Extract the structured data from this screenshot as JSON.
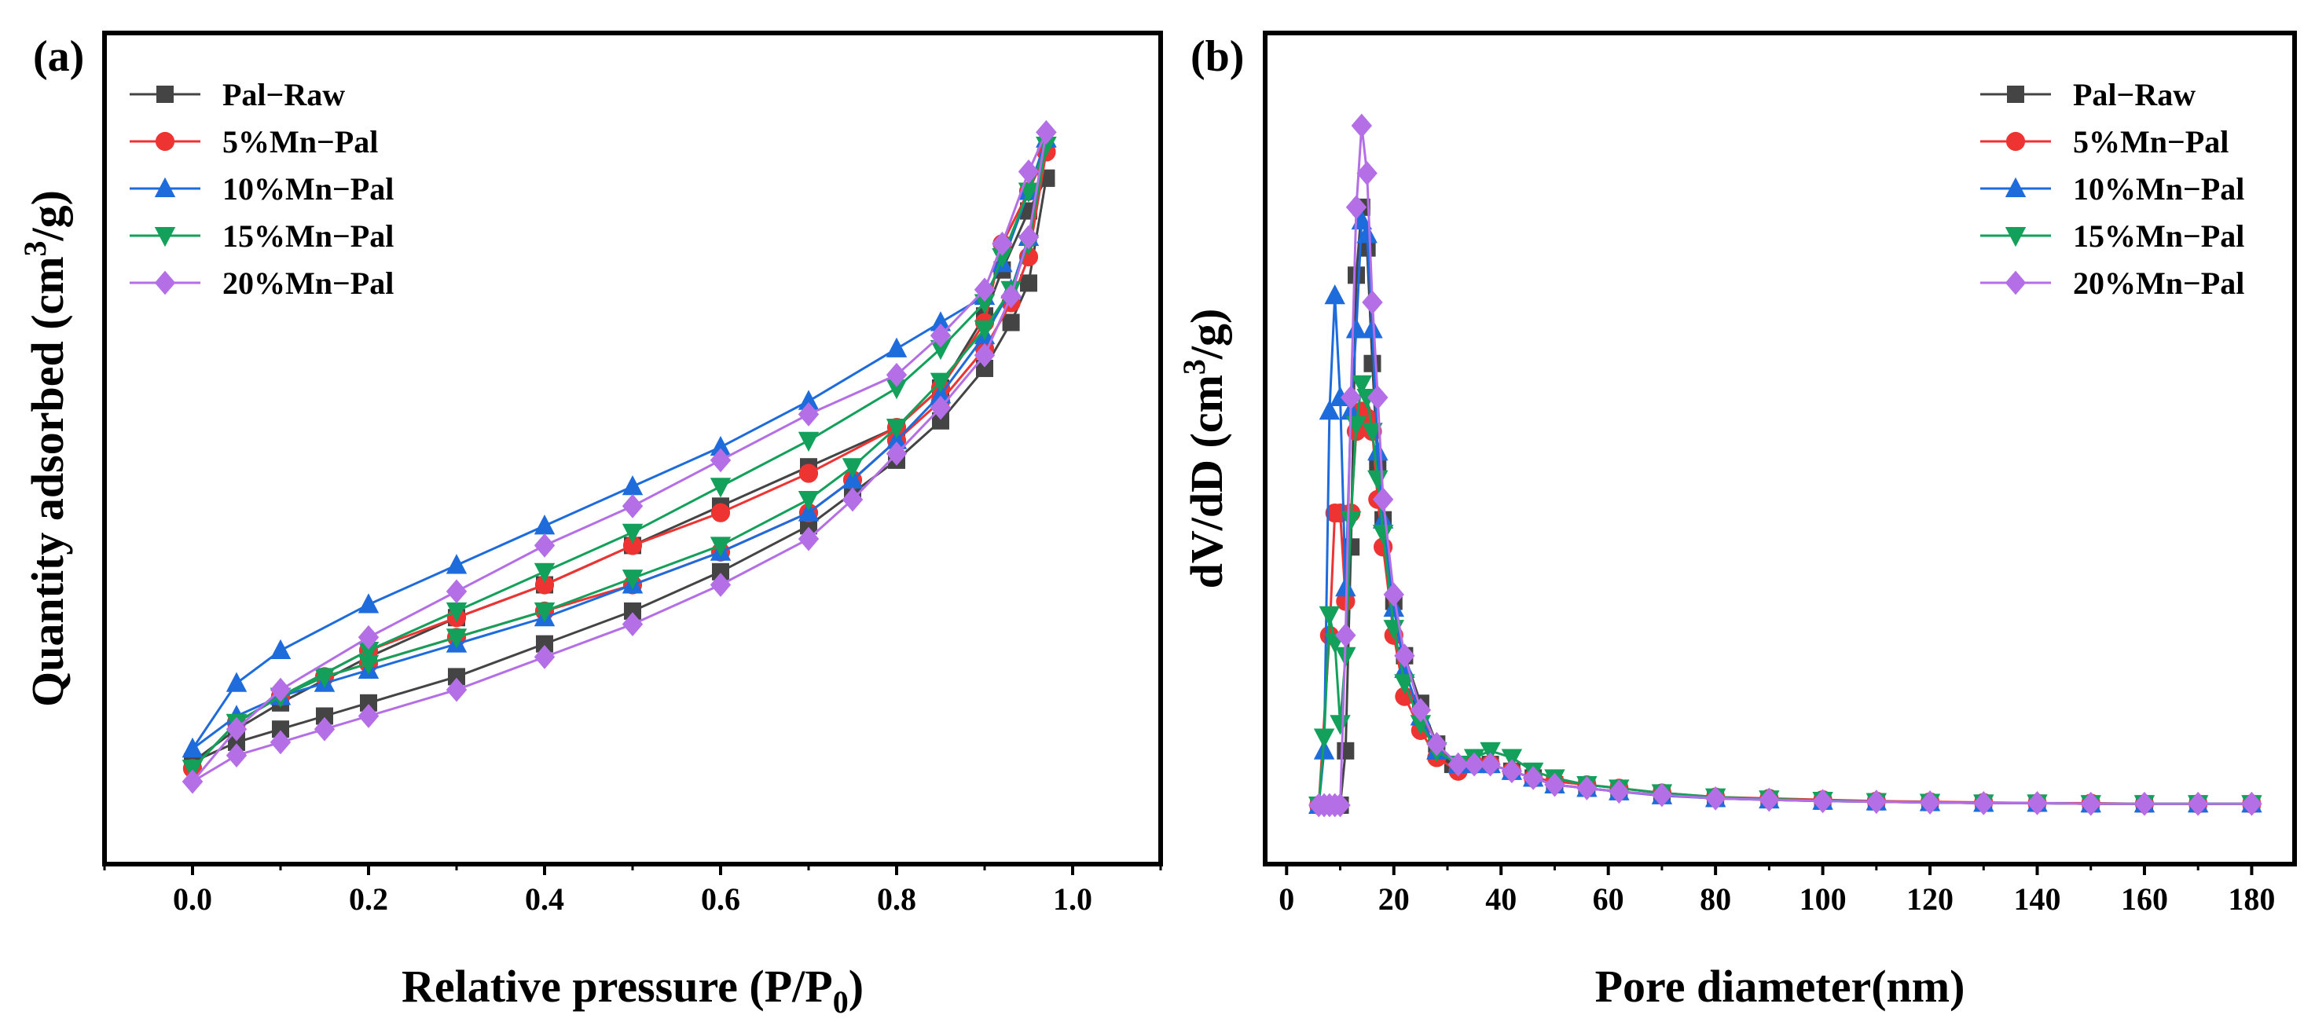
{
  "chart_data": [
    {
      "panel_label": "(a)",
      "type": "scatter",
      "xlabel": "Relative pressure (P/P",
      "xlabel_sub": "0",
      "xlabel_end": ")",
      "ylabel": "Quantity adsorbed (cm",
      "ylabel_sup": "3",
      "ylabel_end": "/g)",
      "xlim": [
        -0.1,
        1.1
      ],
      "ylim": [
        0,
        1
      ],
      "y_ticks_labeled": false,
      "xticks": [
        "0.0",
        "0.2",
        "0.4",
        "0.6",
        "0.8",
        "1.0"
      ],
      "xtick_values": [
        0,
        0.2,
        0.4,
        0.6,
        0.8,
        1.0
      ],
      "grid": false,
      "legend_position": "top-left",
      "series": [
        {
          "name": "Pal−Raw",
          "color": "#444444",
          "marker": "square",
          "adsorption": {
            "x": [
              0.0,
              0.05,
              0.1,
              0.15,
              0.2,
              0.3,
              0.4,
              0.5,
              0.6,
              0.7,
              0.75,
              0.8,
              0.85,
              0.9,
              0.93,
              0.95,
              0.97
            ],
            "y": [
              0.03,
              0.06,
              0.08,
              0.1,
              0.12,
              0.16,
              0.21,
              0.26,
              0.32,
              0.39,
              0.44,
              0.49,
              0.55,
              0.63,
              0.7,
              0.76,
              0.92
            ]
          },
          "desorption": {
            "x": [
              0.97,
              0.95,
              0.92,
              0.9,
              0.85,
              0.8,
              0.7,
              0.6,
              0.5,
              0.4,
              0.3,
              0.2,
              0.1,
              0.05,
              0.0
            ],
            "y": [
              0.92,
              0.87,
              0.78,
              0.71,
              0.6,
              0.54,
              0.48,
              0.42,
              0.36,
              0.3,
              0.25,
              0.19,
              0.12,
              0.08,
              0.03
            ]
          }
        },
        {
          "name": "5%Mn−Pal",
          "color": "#EE3333",
          "marker": "circle",
          "adsorption": {
            "x": [
              0.0,
              0.05,
              0.1,
              0.15,
              0.2,
              0.3,
              0.4,
              0.5,
              0.6,
              0.7,
              0.75,
              0.8,
              0.85,
              0.9,
              0.93,
              0.95,
              0.97
            ],
            "y": [
              0.02,
              0.09,
              0.13,
              0.16,
              0.18,
              0.22,
              0.26,
              0.3,
              0.35,
              0.41,
              0.46,
              0.52,
              0.58,
              0.66,
              0.73,
              0.8,
              0.96
            ]
          },
          "desorption": {
            "x": [
              0.97,
              0.95,
              0.92,
              0.9,
              0.85,
              0.8,
              0.7,
              0.6,
              0.5,
              0.4,
              0.3,
              0.2,
              0.1,
              0.05,
              0.0
            ],
            "y": [
              0.96,
              0.9,
              0.82,
              0.7,
              0.6,
              0.54,
              0.47,
              0.41,
              0.36,
              0.3,
              0.25,
              0.2,
              0.13,
              0.09,
              0.02
            ]
          }
        },
        {
          "name": "10%Mn−Pal",
          "color": "#1E6BDC",
          "marker": "triangle-up",
          "adsorption": {
            "x": [
              0.0,
              0.05,
              0.1,
              0.15,
              0.2,
              0.3,
              0.4,
              0.5,
              0.6,
              0.7,
              0.75,
              0.8,
              0.85,
              0.9,
              0.93,
              0.95,
              0.97
            ],
            "y": [
              0.05,
              0.1,
              0.13,
              0.15,
              0.17,
              0.21,
              0.25,
              0.3,
              0.35,
              0.41,
              0.46,
              0.52,
              0.59,
              0.68,
              0.75,
              0.83,
              0.98
            ]
          },
          "desorption": {
            "x": [
              0.97,
              0.95,
              0.92,
              0.9,
              0.85,
              0.8,
              0.7,
              0.6,
              0.5,
              0.4,
              0.3,
              0.2,
              0.1,
              0.05,
              0.0
            ],
            "y": [
              0.98,
              0.9,
              0.79,
              0.74,
              0.7,
              0.66,
              0.58,
              0.51,
              0.45,
              0.39,
              0.33,
              0.27,
              0.2,
              0.15,
              0.05
            ]
          }
        },
        {
          "name": "15%Mn−Pal",
          "color": "#12A05A",
          "marker": "triangle-down",
          "adsorption": {
            "x": [
              0.0,
              0.05,
              0.1,
              0.15,
              0.2,
              0.3,
              0.4,
              0.5,
              0.6,
              0.7,
              0.75,
              0.8,
              0.85,
              0.9,
              0.93,
              0.95,
              0.97
            ],
            "y": [
              0.02,
              0.09,
              0.13,
              0.16,
              0.18,
              0.22,
              0.26,
              0.31,
              0.36,
              0.43,
              0.48,
              0.54,
              0.61,
              0.69,
              0.75,
              0.82,
              0.97
            ]
          },
          "desorption": {
            "x": [
              0.97,
              0.95,
              0.92,
              0.9,
              0.85,
              0.8,
              0.7,
              0.6,
              0.5,
              0.4,
              0.3,
              0.2,
              0.1,
              0.05,
              0.0
            ],
            "y": [
              0.97,
              0.9,
              0.8,
              0.73,
              0.66,
              0.6,
              0.52,
              0.45,
              0.38,
              0.32,
              0.26,
              0.2,
              0.13,
              0.09,
              0.02
            ]
          }
        },
        {
          "name": "20%Mn−Pal",
          "color": "#B46EE6",
          "marker": "diamond",
          "adsorption": {
            "x": [
              0.0,
              0.05,
              0.1,
              0.15,
              0.2,
              0.3,
              0.4,
              0.5,
              0.6,
              0.7,
              0.75,
              0.8,
              0.85,
              0.9,
              0.93,
              0.95,
              0.97
            ],
            "y": [
              0.0,
              0.04,
              0.06,
              0.08,
              0.1,
              0.14,
              0.19,
              0.24,
              0.3,
              0.37,
              0.43,
              0.5,
              0.57,
              0.65,
              0.74,
              0.83,
              0.99
            ]
          },
          "desorption": {
            "x": [
              0.97,
              0.95,
              0.92,
              0.9,
              0.85,
              0.8,
              0.7,
              0.6,
              0.5,
              0.4,
              0.3,
              0.2,
              0.1,
              0.05,
              0.0
            ],
            "y": [
              0.99,
              0.93,
              0.82,
              0.75,
              0.68,
              0.62,
              0.56,
              0.49,
              0.42,
              0.36,
              0.29,
              0.22,
              0.14,
              0.08,
              0.0
            ]
          }
        }
      ]
    },
    {
      "panel_label": "(b)",
      "type": "line",
      "xlabel": "Pore diameter(nm)",
      "ylabel": "dV/dD (cm",
      "ylabel_sup": "3",
      "ylabel_end": "/g)",
      "xlim": [
        -4,
        188
      ],
      "ylim": [
        0,
        1
      ],
      "y_ticks_labeled": false,
      "xticks": [
        "0",
        "20",
        "40",
        "60",
        "80",
        "100",
        "120",
        "140",
        "160",
        "180"
      ],
      "xtick_values": [
        0,
        20,
        40,
        60,
        80,
        100,
        120,
        140,
        160,
        180
      ],
      "grid": false,
      "legend_position": "top-right",
      "series": [
        {
          "name": "Pal−Raw",
          "color": "#444444",
          "marker": "square",
          "x": [
            6,
            8,
            10,
            11,
            12,
            13,
            14,
            15,
            16,
            17,
            18,
            20,
            22,
            25,
            28,
            31,
            34,
            38,
            42,
            46,
            50,
            56,
            62,
            70,
            80,
            90,
            100,
            110,
            120,
            130,
            140,
            150,
            160,
            170,
            180
          ],
          "y": [
            0.0,
            0.0,
            0.0,
            0.08,
            0.38,
            0.78,
            0.88,
            0.82,
            0.65,
            0.5,
            0.42,
            0.3,
            0.22,
            0.15,
            0.09,
            0.06,
            0.06,
            0.06,
            0.05,
            0.04,
            0.03,
            0.025,
            0.02,
            0.015,
            0.01,
            0.008,
            0.006,
            0.005,
            0.004,
            0.003,
            0.003,
            0.002,
            0.002,
            0.002,
            0.002
          ]
        },
        {
          "name": "5%Mn−Pal",
          "color": "#EE3333",
          "marker": "circle",
          "x": [
            6,
            8,
            9,
            10,
            11,
            12,
            13,
            14,
            15,
            16,
            17,
            18,
            20,
            22,
            25,
            28,
            32,
            35,
            38,
            42,
            46,
            50,
            56,
            62,
            70,
            80,
            90,
            100,
            110,
            120,
            130,
            140,
            150,
            160,
            170,
            180
          ],
          "y": [
            0.0,
            0.25,
            0.43,
            0.43,
            0.3,
            0.43,
            0.55,
            0.58,
            0.57,
            0.55,
            0.45,
            0.38,
            0.25,
            0.16,
            0.11,
            0.07,
            0.05,
            0.06,
            0.06,
            0.05,
            0.04,
            0.035,
            0.03,
            0.025,
            0.018,
            0.012,
            0.01,
            0.008,
            0.006,
            0.005,
            0.004,
            0.003,
            0.003,
            0.002,
            0.002,
            0.002
          ]
        },
        {
          "name": "10%Mn−Pal",
          "color": "#1E6BDC",
          "marker": "triangle-up",
          "x": [
            6,
            7,
            8,
            9,
            10,
            11,
            12,
            13,
            14,
            15,
            16,
            17,
            18,
            20,
            22,
            25,
            28,
            32,
            35,
            38,
            42,
            46,
            50,
            56,
            62,
            70,
            80,
            90,
            100,
            110,
            120,
            130,
            140,
            150,
            160,
            170,
            180
          ],
          "y": [
            0.0,
            0.08,
            0.58,
            0.75,
            0.6,
            0.32,
            0.58,
            0.7,
            0.86,
            0.84,
            0.7,
            0.52,
            0.42,
            0.29,
            0.2,
            0.13,
            0.08,
            0.06,
            0.06,
            0.06,
            0.05,
            0.04,
            0.03,
            0.025,
            0.02,
            0.014,
            0.01,
            0.008,
            0.006,
            0.005,
            0.004,
            0.003,
            0.003,
            0.002,
            0.002,
            0.002,
            0.002
          ]
        },
        {
          "name": "15%Mn−Pal",
          "color": "#12A05A",
          "marker": "triangle-down",
          "x": [
            6,
            7,
            8,
            9,
            10,
            11,
            12,
            13,
            14,
            15,
            16,
            17,
            18,
            20,
            22,
            25,
            28,
            32,
            35,
            38,
            42,
            46,
            50,
            56,
            62,
            70,
            80,
            90,
            100,
            110,
            120,
            130,
            140,
            150,
            160,
            170,
            180
          ],
          "y": [
            0.0,
            0.1,
            0.28,
            0.24,
            0.12,
            0.22,
            0.42,
            0.56,
            0.62,
            0.6,
            0.55,
            0.48,
            0.4,
            0.26,
            0.18,
            0.12,
            0.08,
            0.06,
            0.07,
            0.08,
            0.07,
            0.05,
            0.04,
            0.03,
            0.025,
            0.018,
            0.012,
            0.009,
            0.007,
            0.005,
            0.004,
            0.003,
            0.003,
            0.002,
            0.002,
            0.002,
            0.002
          ]
        },
        {
          "name": "20%Mn−Pal",
          "color": "#B46EE6",
          "marker": "diamond",
          "x": [
            6,
            7,
            8,
            9,
            10,
            11,
            12,
            13,
            14,
            15,
            16,
            17,
            18,
            20,
            22,
            25,
            28,
            32,
            35,
            38,
            42,
            46,
            50,
            56,
            62,
            70,
            80,
            90,
            100,
            110,
            120,
            130,
            140,
            150,
            160,
            170,
            180
          ],
          "y": [
            0.0,
            0.0,
            0.0,
            0.0,
            0.0,
            0.25,
            0.6,
            0.88,
            1.0,
            0.93,
            0.74,
            0.6,
            0.45,
            0.31,
            0.22,
            0.14,
            0.09,
            0.06,
            0.06,
            0.06,
            0.05,
            0.04,
            0.03,
            0.025,
            0.02,
            0.015,
            0.01,
            0.008,
            0.006,
            0.005,
            0.004,
            0.003,
            0.003,
            0.002,
            0.002,
            0.002,
            0.002
          ]
        }
      ]
    }
  ]
}
